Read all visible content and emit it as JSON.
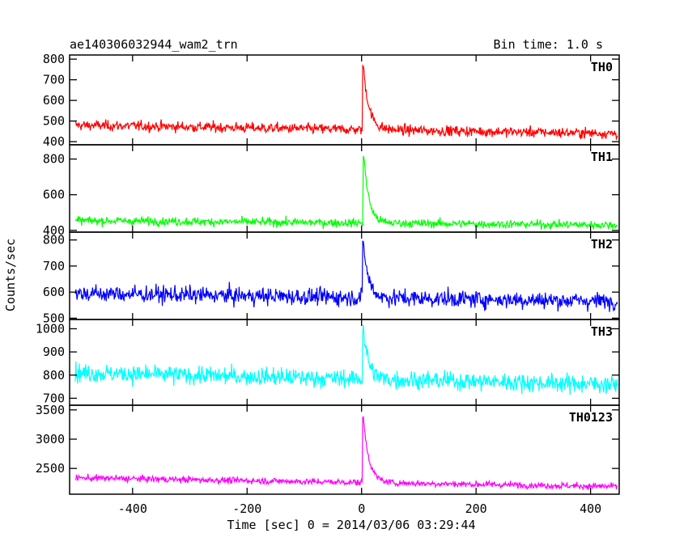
{
  "header": {
    "left": "ae140306032944_wam2_trn",
    "right": "Bin time: 1.0 s"
  },
  "chart_data": {
    "type": "line",
    "xlabel": "Time [sec] 0 = 2014/03/06 03:29:44",
    "ylabel": "Counts/sec",
    "xlim": [
      -510,
      450
    ],
    "xticks": [
      -400,
      -200,
      0,
      200,
      400
    ],
    "bin_time_s": 1.0,
    "grid": false,
    "panels": [
      {
        "name": "TH0",
        "color": "#ff0000",
        "ylim": [
          385,
          820
        ],
        "yticks": [
          400,
          500,
          600,
          700,
          800
        ],
        "x_range": [
          -500,
          447
        ],
        "baseline_start": 480,
        "baseline_end": 440,
        "noise": 32,
        "peak": {
          "t": 3,
          "value": 820,
          "decay_s": 10
        }
      },
      {
        "name": "TH1",
        "color": "#00ff00",
        "ylim": [
          390,
          880
        ],
        "yticks": [
          400,
          600,
          800
        ],
        "x_range": [
          -500,
          447
        ],
        "baseline_start": 455,
        "baseline_end": 430,
        "noise": 30,
        "peak": {
          "t": 4,
          "value": 880,
          "decay_s": 9
        }
      },
      {
        "name": "TH2",
        "color": "#0000ff",
        "ylim": [
          495,
          830
        ],
        "yticks": [
          500,
          600,
          700,
          800
        ],
        "x_range": [
          -500,
          447
        ],
        "baseline_start": 595,
        "baseline_end": 565,
        "noise": 42,
        "peak": {
          "t": 3,
          "value": 830,
          "decay_s": 9
        }
      },
      {
        "name": "TH3",
        "color": "#00ffff",
        "ylim": [
          670,
          1040
        ],
        "yticks": [
          700,
          800,
          900,
          1000
        ],
        "x_range": [
          -500,
          447
        ],
        "baseline_start": 810,
        "baseline_end": 760,
        "noise": 50,
        "peak": {
          "t": 3,
          "value": 1040,
          "decay_s": 9
        }
      },
      {
        "name": "TH0123",
        "color": "#ff00ff",
        "ylim": [
          2060,
          3580
        ],
        "yticks": [
          2500,
          3000,
          3500
        ],
        "x_range": [
          -500,
          447
        ],
        "baseline_start": 2340,
        "baseline_end": 2190,
        "noise": 70,
        "peak": {
          "t": 3,
          "value": 3580,
          "decay_s": 10
        }
      }
    ]
  }
}
